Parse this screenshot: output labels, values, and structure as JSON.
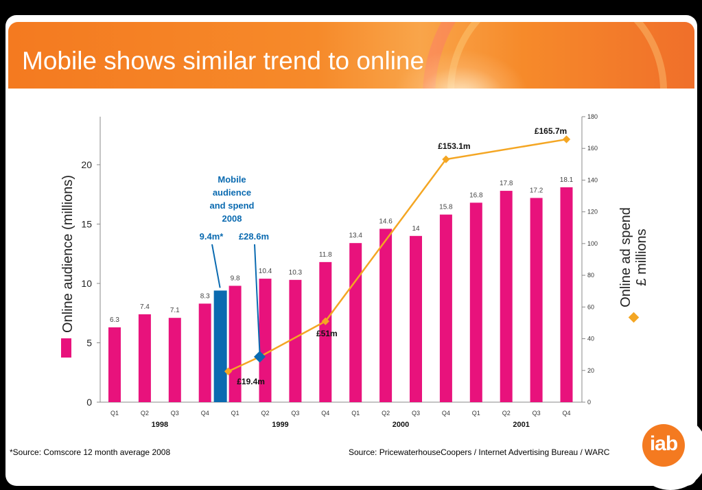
{
  "slide": {
    "title": "Mobile shows similar trend to online",
    "footnote_left": "*Source: Comscore 12 month average 2008",
    "footnote_right": "Source: PricewaterhouseCoopers / Internet Advertising Bureau / WARC",
    "logo_text": "iab"
  },
  "colors": {
    "audience_bar": "#e8127c",
    "mobile_bar": "#0a6ab0",
    "spend_line": "#f4a623",
    "header": "#f47a20"
  },
  "chart_data": {
    "type": "bar",
    "categories": [
      "Q1",
      "Q2",
      "Q3",
      "Q4",
      "Q1",
      "Q2",
      "Q3",
      "Q4",
      "Q1",
      "Q2",
      "Q3",
      "Q4",
      "Q1",
      "Q2",
      "Q3",
      "Q4"
    ],
    "years": [
      {
        "label": "1998",
        "span": [
          0,
          3
        ]
      },
      {
        "label": "1999",
        "span": [
          4,
          7
        ]
      },
      {
        "label": "2000",
        "span": [
          8,
          11
        ]
      },
      {
        "label": "2001",
        "span": [
          12,
          15
        ]
      }
    ],
    "series": [
      {
        "name": "Online audience (millions)",
        "type": "bar",
        "axis": "left",
        "values": [
          6.3,
          7.4,
          7.1,
          8.3,
          9.8,
          10.4,
          10.3,
          11.8,
          13.4,
          14.6,
          14,
          15.8,
          16.8,
          17.8,
          17.2,
          18.1
        ],
        "labels": [
          "6.3",
          "7.4",
          "7.1",
          "8.3",
          "9.8",
          "10.4",
          "10.3",
          "11.8",
          "13.4",
          "14.6",
          "14",
          "15.8",
          "16.8",
          "17.8",
          "17.2",
          "18.1"
        ]
      },
      {
        "name": "Online ad spend £ millions",
        "type": "line",
        "axis": "right",
        "x": [
          4,
          5,
          7,
          11,
          15
        ],
        "values": [
          19.4,
          28.6,
          51,
          153.1,
          165.7
        ]
      }
    ],
    "mobile_bar": {
      "value": 9.4,
      "between": [
        3,
        4
      ]
    },
    "left_axis": {
      "label": "Online audience (millions)",
      "ylim": [
        0,
        24
      ],
      "ticks": [
        "0",
        "5",
        "10",
        "15",
        "20"
      ]
    },
    "right_axis": {
      "label_line1": "Online ad spend",
      "label_line2": "£ millions",
      "ylim": [
        0,
        180
      ],
      "ticks": [
        "0",
        "20",
        "40",
        "60",
        "80",
        "100",
        "120",
        "140",
        "160",
        "180"
      ]
    },
    "annotations": {
      "mobile_lines": [
        "Mobile",
        "audience",
        "and spend",
        "2008"
      ],
      "mobile_audience": "9.4m*",
      "mobile_spend": "£28.6m",
      "spend_labels": [
        "£19.4m",
        "£51m",
        "£153.1m",
        "£165.7m"
      ]
    },
    "grid": false,
    "legend": "axis-labels"
  }
}
